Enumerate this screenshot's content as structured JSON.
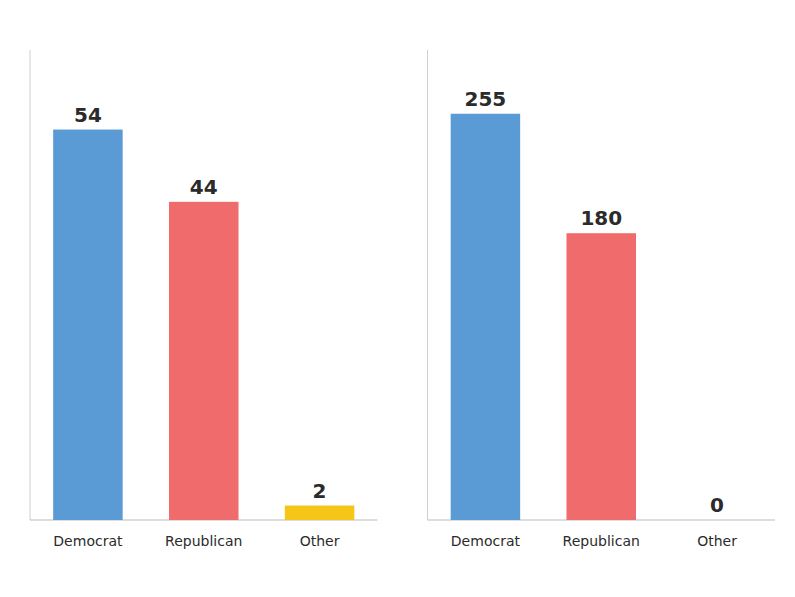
{
  "chart_data": [
    {
      "type": "bar",
      "categories": [
        "Democrat",
        "Republican",
        "Other"
      ],
      "values": [
        54,
        44,
        2
      ],
      "colors": [
        "#5b9bd5",
        "#f06b6b",
        "#f5c518"
      ],
      "ylim": [
        0,
        65
      ],
      "data_labels": true,
      "tick_labels": "x"
    },
    {
      "type": "bar",
      "categories": [
        "Democrat",
        "Republican",
        "Other"
      ],
      "values": [
        255,
        180,
        0
      ],
      "colors": [
        "#5b9bd5",
        "#f06b6b",
        "#f5c518"
      ],
      "ylim": [
        0,
        295
      ],
      "data_labels": true,
      "tick_labels": "x"
    }
  ]
}
